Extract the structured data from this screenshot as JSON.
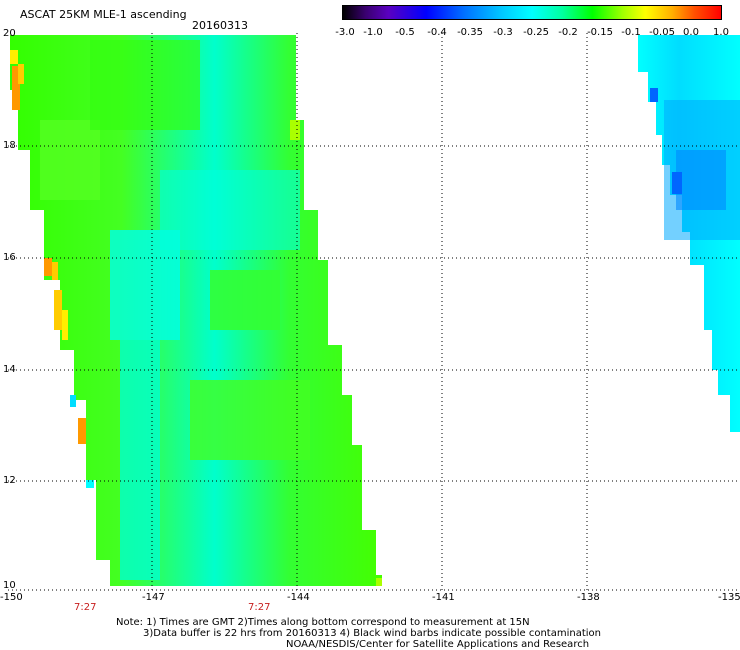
{
  "title": "ASCAT 25KM MLE-1 ascending",
  "date": "20160313",
  "colorbar": {
    "labels": [
      "-3.0",
      "-1.0",
      "-0.5",
      "-0.4",
      "-0.35",
      "-0.3",
      "-0.25",
      "-0.2",
      "-0.15",
      "-0.1",
      "-0.05",
      "0.0",
      "1.0"
    ]
  },
  "lat_labels": [
    "20",
    "18",
    "16",
    "14",
    "12",
    "10"
  ],
  "lon_labels": [
    "-150",
    "-147",
    "-144",
    "-141",
    "-138",
    "-135"
  ],
  "time_labels": [
    "7:27",
    "7:27"
  ],
  "notes": {
    "line1": "Note: 1) Times are GMT 2)Times along bottom correspond to measurement at 15N",
    "line2": "3)Data buffer is 22 hrs from 20160313 4) Black wind barbs indicate possible contamination",
    "line3": "NOAA/NESDIS/Center for Satellite Applications and Research"
  },
  "colors": {
    "green": "#33ff00",
    "light_green": "#66ff33",
    "cyan": "#00ffdd",
    "aqua": "#00ffff",
    "blue": "#0099ff",
    "orange": "#ff9900",
    "yellow": "#ffee00",
    "time_red": "#c81e1e"
  }
}
